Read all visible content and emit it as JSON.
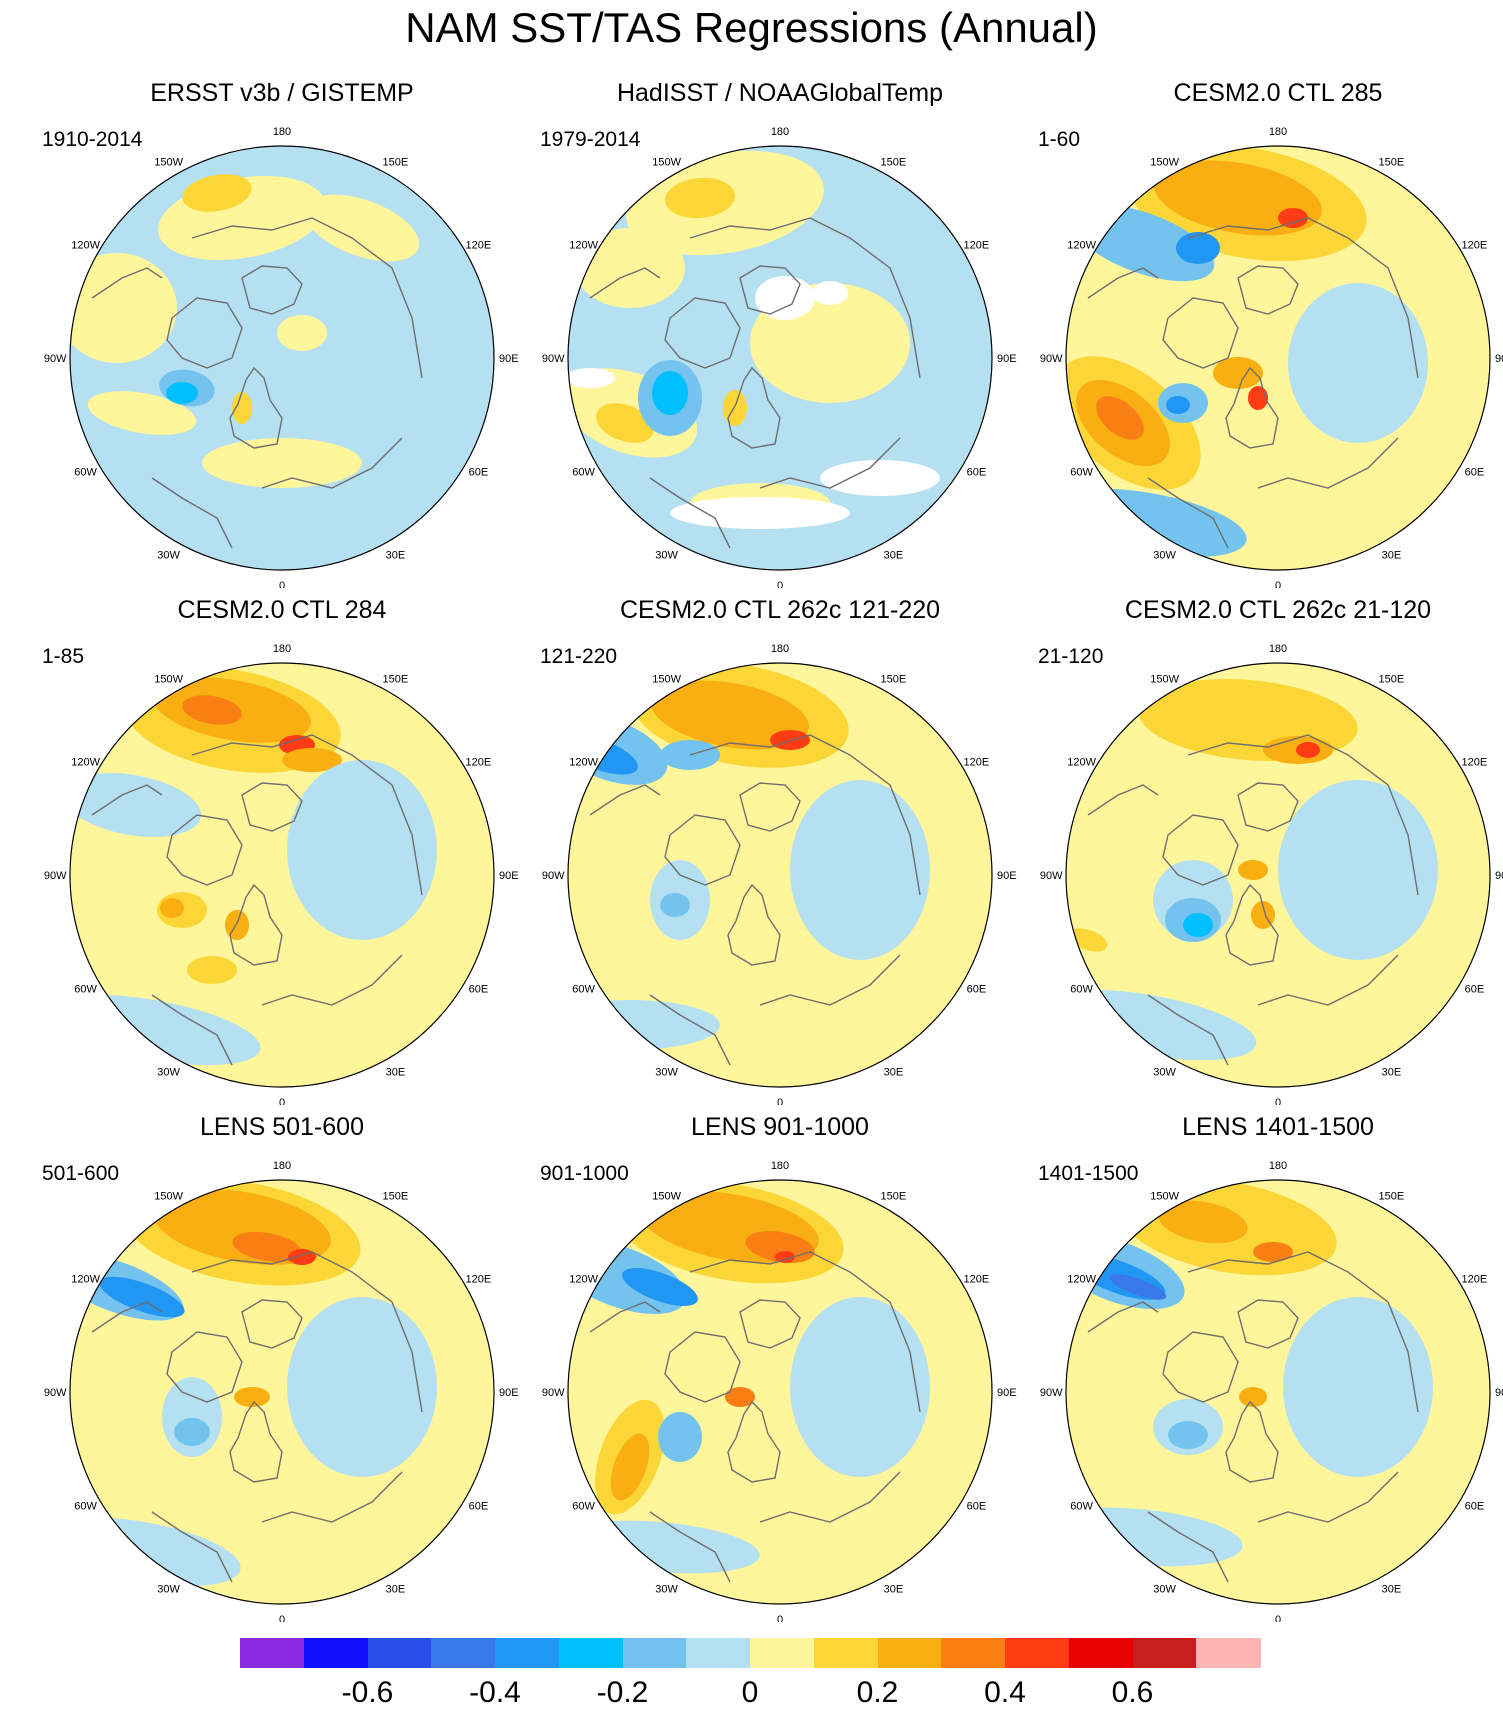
{
  "title": "NAM SST/TAS Regressions (Annual)",
  "lon_labels": [
    "180",
    "150E",
    "120E",
    "90E",
    "60E",
    "30E",
    "0",
    "30W",
    "60W",
    "90W",
    "120W",
    "150W"
  ],
  "panels": [
    {
      "title": "ERSST v3b / GISTEMP",
      "period": "1910-2014"
    },
    {
      "title": "HadISST / NOAAGlobalTemp",
      "period": "1979-2014"
    },
    {
      "title": "CESM2.0 CTL 285",
      "period": "1-60"
    },
    {
      "title": "CESM2.0 CTL 284",
      "period": "1-85"
    },
    {
      "title": "CESM2.0 CTL 262c 121-220",
      "period": "121-220"
    },
    {
      "title": "CESM2.0 CTL 262c 21-120",
      "period": "21-120"
    },
    {
      "title": "LENS 501-600",
      "period": "501-600"
    },
    {
      "title": "LENS 901-1000",
      "period": "901-1000"
    },
    {
      "title": "LENS 1401-1500",
      "period": "1401-1500"
    }
  ],
  "colorbar": {
    "colors": [
      "#8a2be2",
      "#1010ff",
      "#2a4ee8",
      "#3a78e8",
      "#2196f3",
      "#00bfff",
      "#74c3ef",
      "#b4e0f2",
      "#fff59a",
      "#fbd636",
      "#f9ae12",
      "#f97f14",
      "#ff3c14",
      "#e60000",
      "#c81e1e",
      "#ffb4b4"
    ],
    "tick_values": [
      -0.6,
      -0.4,
      -0.2,
      0,
      0.2,
      0.4,
      0.6
    ],
    "tick_labels": [
      "-0.6",
      "-0.4",
      "-0.2",
      "0",
      "0.2",
      "0.4",
      "0.6"
    ]
  },
  "palette": {
    "ocean_blue": "#b4e0f2",
    "pale_yellow": "#fff59a",
    "yellow": "#fbd636",
    "orange": "#f9ae12",
    "dark_orange": "#f97f14",
    "red": "#ff3c14",
    "light_blue": "#74c3ef",
    "blue": "#00bfff",
    "mid_blue": "#2196f3",
    "deep_blue": "#3a78e8",
    "no_data": "#ffffff",
    "coast": "#6e6e6e"
  }
}
